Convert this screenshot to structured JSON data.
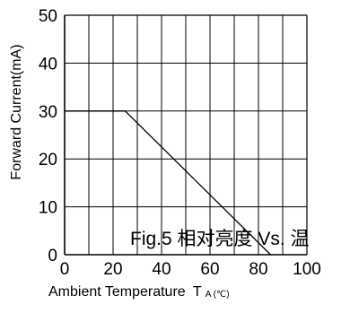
{
  "chart_data": {
    "type": "line",
    "title": "",
    "xlabel": "Ambient Temperature",
    "xlabel_symbol": "T",
    "xlabel_subscript": "A (℃)",
    "ylabel": "Forward Current(mA)",
    "xlim": [
      0,
      100
    ],
    "ylim": [
      0,
      50
    ],
    "x_ticks": [
      0,
      20,
      40,
      60,
      80,
      100
    ],
    "x_tick_labels": [
      "0",
      "20",
      "40",
      "60",
      "80",
      "100"
    ],
    "y_ticks": [
      0,
      10,
      20,
      30,
      40,
      50
    ],
    "y_tick_labels": [
      "0",
      "10",
      "20",
      "30",
      "40",
      "50"
    ],
    "grid": true,
    "grid_x_step": 10,
    "series": [
      {
        "x": [
          0,
          25,
          85
        ],
        "y": [
          30,
          30,
          0
        ],
        "color": "#000000"
      }
    ],
    "annotation": "Fig.5  相对亮度 Vs. 温"
  }
}
